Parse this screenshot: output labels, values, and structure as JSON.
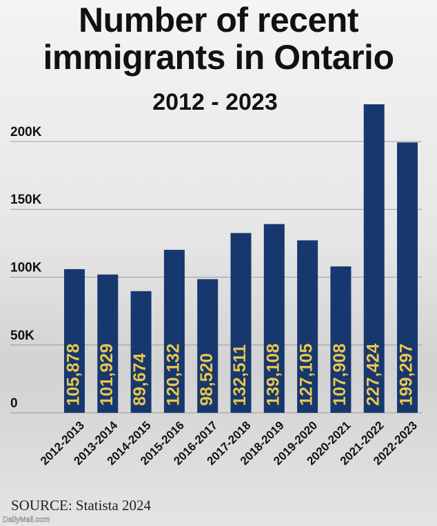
{
  "chart_data": {
    "type": "bar",
    "title": "Number of recent immigrants in Ontario",
    "subtitle": "2012 - 2023",
    "source": "SOURCE: Statista 2024",
    "watermark": "DailyMail.com",
    "categories": [
      "2012-2013",
      "2013-2014",
      "2014-2015",
      "2015-2016",
      "2016-2017",
      "2017-2018",
      "2018-2019",
      "2019-2020",
      "2020-2021",
      "2021-2022",
      "2022-2023"
    ],
    "values": [
      105878,
      101929,
      89674,
      120132,
      98520,
      132511,
      139108,
      127105,
      107908,
      227424,
      199297
    ],
    "value_labels": [
      "105,878",
      "101,929",
      "89,674",
      "120,132",
      "98,520",
      "132,511",
      "139,108",
      "127,105",
      "107,908",
      "227,424",
      "199,297"
    ],
    "color": "#17376f",
    "label_color": "#e9c74c",
    "ylim": [
      0,
      230000
    ],
    "yticks": [
      0,
      {
        "value": 50000,
        "label": "50K"
      },
      {
        "value": 100000,
        "label": "100K"
      },
      {
        "value": 150000,
        "label": "150K"
      },
      {
        "value": 200000,
        "label": "200K"
      }
    ],
    "grid": true
  }
}
